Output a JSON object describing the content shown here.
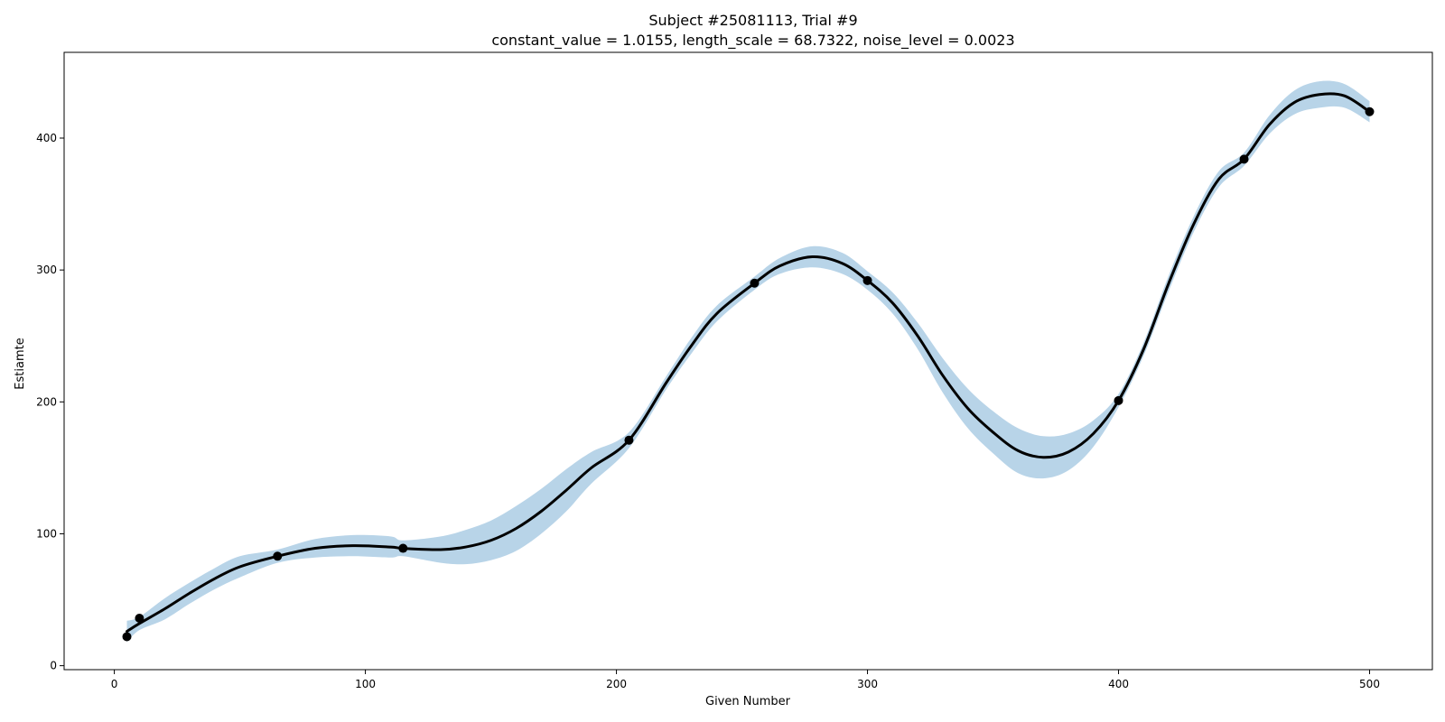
{
  "chart_data": {
    "type": "line",
    "title": "Subject #25081113, Trial #9",
    "subtitle": "constant_value = 1.0155,  length_scale = 68.7322,  noise_level = 0.0023",
    "xlabel": "Given Number",
    "ylabel": "Estiamte",
    "xlim": [
      -20,
      525
    ],
    "ylim": [
      -3,
      465
    ],
    "xticks": [
      0,
      100,
      200,
      300,
      400,
      500
    ],
    "yticks": [
      0,
      100,
      200,
      300,
      400
    ],
    "grid": false,
    "colors": {
      "mean_line": "#000000",
      "band": "#b8d4e8",
      "points": "#000000"
    },
    "observations": {
      "x": [
        5,
        10,
        65,
        115,
        205,
        255,
        300,
        400,
        450,
        500
      ],
      "y": [
        22,
        36,
        83,
        89,
        171,
        290,
        292,
        201,
        384,
        420
      ]
    },
    "mean_curve": {
      "x": [
        5,
        10,
        20,
        30,
        40,
        50,
        65,
        80,
        95,
        110,
        115,
        130,
        140,
        150,
        160,
        170,
        180,
        190,
        205,
        220,
        230,
        240,
        255,
        265,
        278,
        290,
        300,
        310,
        320,
        330,
        340,
        350,
        360,
        370,
        380,
        390,
        400,
        410,
        420,
        430,
        440,
        450,
        460,
        470,
        480,
        490,
        500
      ],
      "y": [
        26,
        32,
        43,
        55,
        66,
        75,
        83,
        89,
        91,
        90,
        89,
        88,
        90,
        95,
        104,
        117,
        133,
        150,
        171,
        215,
        243,
        267,
        290,
        303,
        310,
        305,
        292,
        275,
        250,
        220,
        195,
        177,
        163,
        158,
        162,
        176,
        201,
        240,
        290,
        335,
        369,
        384,
        410,
        427,
        433,
        432,
        420
      ]
    },
    "band_halfwidth": [
      8,
      5,
      8,
      8,
      8,
      8,
      5,
      7,
      8,
      8,
      6,
      10,
      13,
      15,
      17,
      17,
      16,
      12,
      6,
      5,
      6,
      6,
      5,
      6,
      8,
      8,
      7,
      8,
      10,
      13,
      15,
      16,
      17,
      16,
      14,
      10,
      5,
      5,
      6,
      6,
      6,
      5,
      7,
      9,
      10,
      9,
      8
    ]
  }
}
